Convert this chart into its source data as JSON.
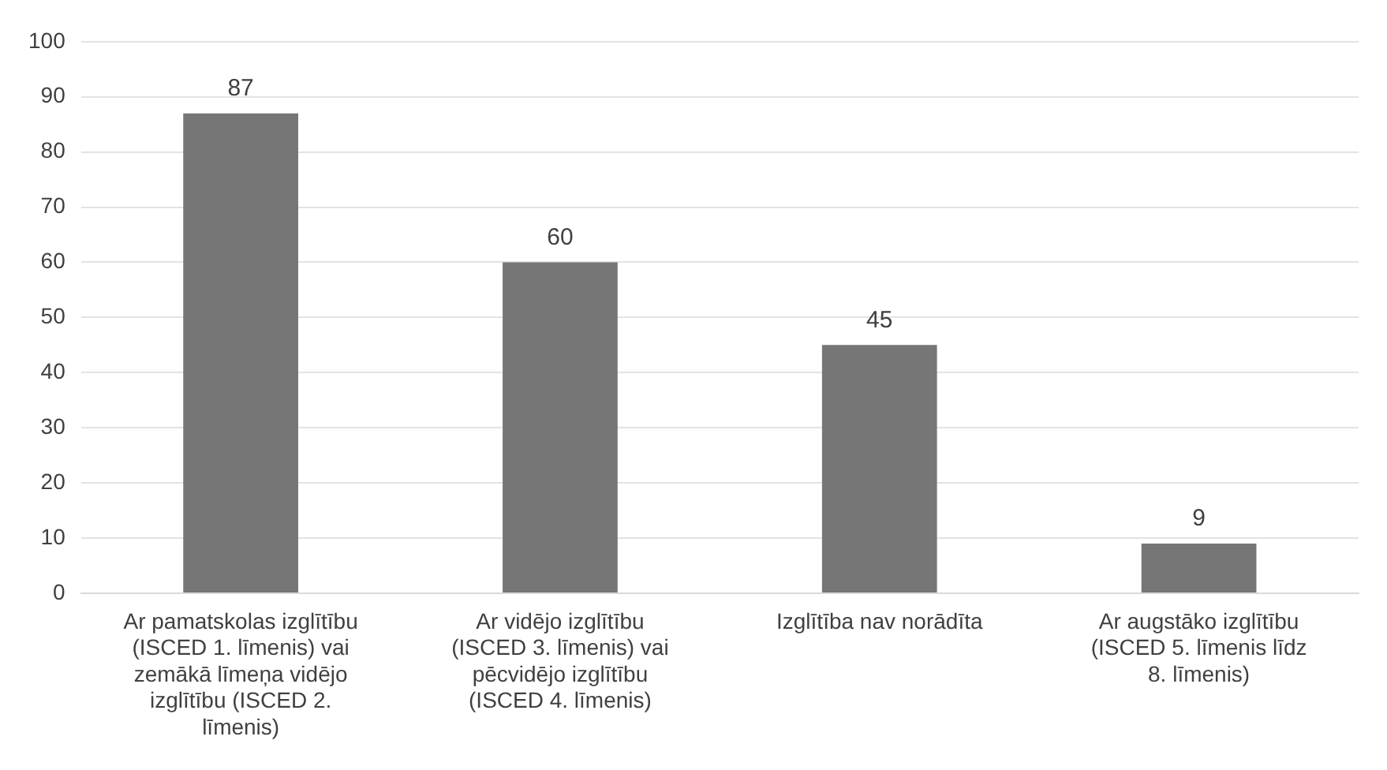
{
  "chart_data": {
    "type": "bar",
    "categories": [
      "Ar pamatskolas izglītību (ISCED 1. līmenis) vai zemākā līmeņa vidējo izglītību (ISCED 2. līmenis)",
      "Ar vidējo izglītību (ISCED 3. līmenis) vai pēcvidējo izglītību (ISCED 4. līmenis)",
      "Izglītība nav norādīta",
      "Ar augstāko izglītību (ISCED 5. līmenis līdz 8. līmenis)"
    ],
    "values": [
      87,
      60,
      45,
      9
    ],
    "color": "#767676",
    "ylim": [
      0,
      100
    ],
    "yticks": [
      0,
      10,
      20,
      30,
      40,
      50,
      60,
      70,
      80,
      90,
      100
    ],
    "grid": "y",
    "data_labels": true
  }
}
